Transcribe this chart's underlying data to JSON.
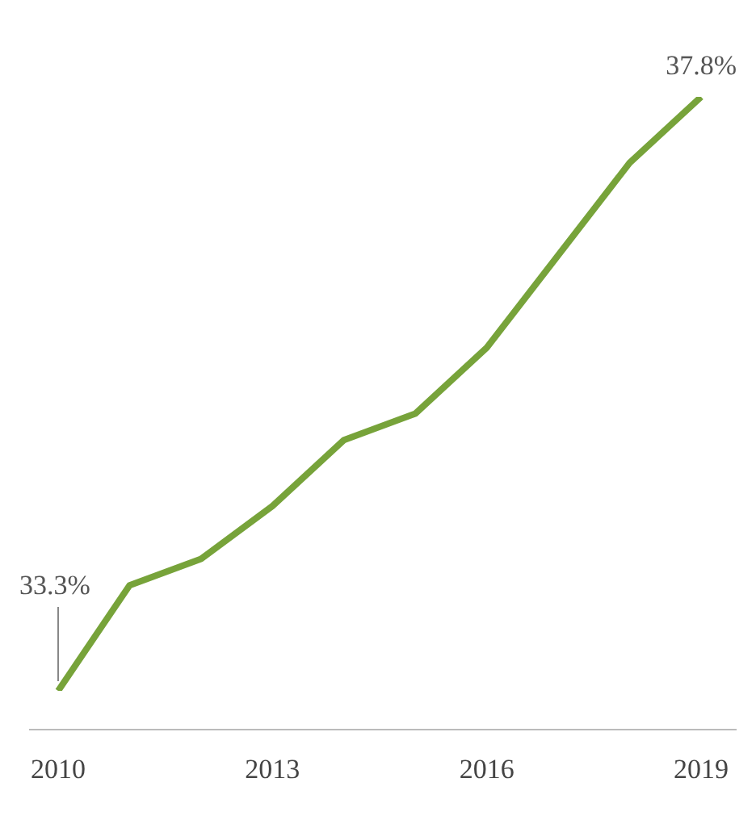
{
  "chart_data": {
    "type": "line",
    "categories": [
      "2010",
      null,
      null,
      "2013",
      null,
      null,
      "2016",
      null,
      null,
      "2019"
    ],
    "series": [
      {
        "color": "#77a33a",
        "values": [
          33.3,
          34.1,
          34.3,
          34.7,
          35.2,
          35.4,
          35.9,
          36.6,
          37.3,
          37.8
        ],
        "value_labels": [
          "33.3%",
          null,
          null,
          null,
          null,
          null,
          null,
          null,
          null,
          "37.8%"
        ]
      }
    ],
    "tick_labels": "x",
    "grid": false,
    "legend": false,
    "marker": "none",
    "line_style": "solid"
  }
}
